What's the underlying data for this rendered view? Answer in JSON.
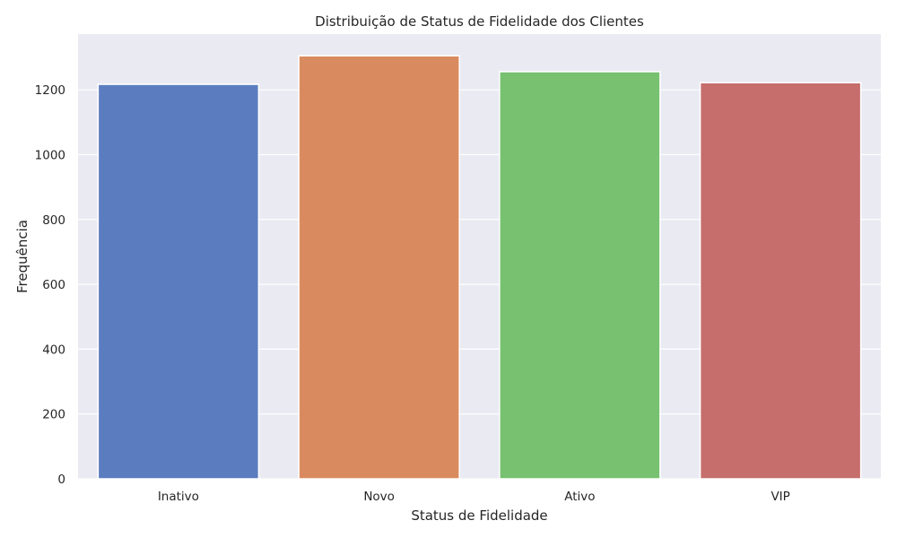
{
  "chart_data": {
    "type": "bar",
    "title": "Distribuição de Status de Fidelidade dos Clientes",
    "xlabel": "Status de Fidelidade",
    "ylabel": "Frequência",
    "categories": [
      "Inativo",
      "Novo",
      "Ativo",
      "VIP"
    ],
    "values": [
      1217,
      1305,
      1256,
      1222
    ],
    "colors": [
      "#5b7dc0",
      "#d98b5f",
      "#77c170",
      "#c56e6c"
    ],
    "ylim": [
      0,
      1372
    ],
    "yticks": [
      0,
      200,
      400,
      600,
      800,
      1000,
      1200
    ],
    "grid": true,
    "background": "#eaeaf2",
    "gridColor": "#ffffff"
  }
}
